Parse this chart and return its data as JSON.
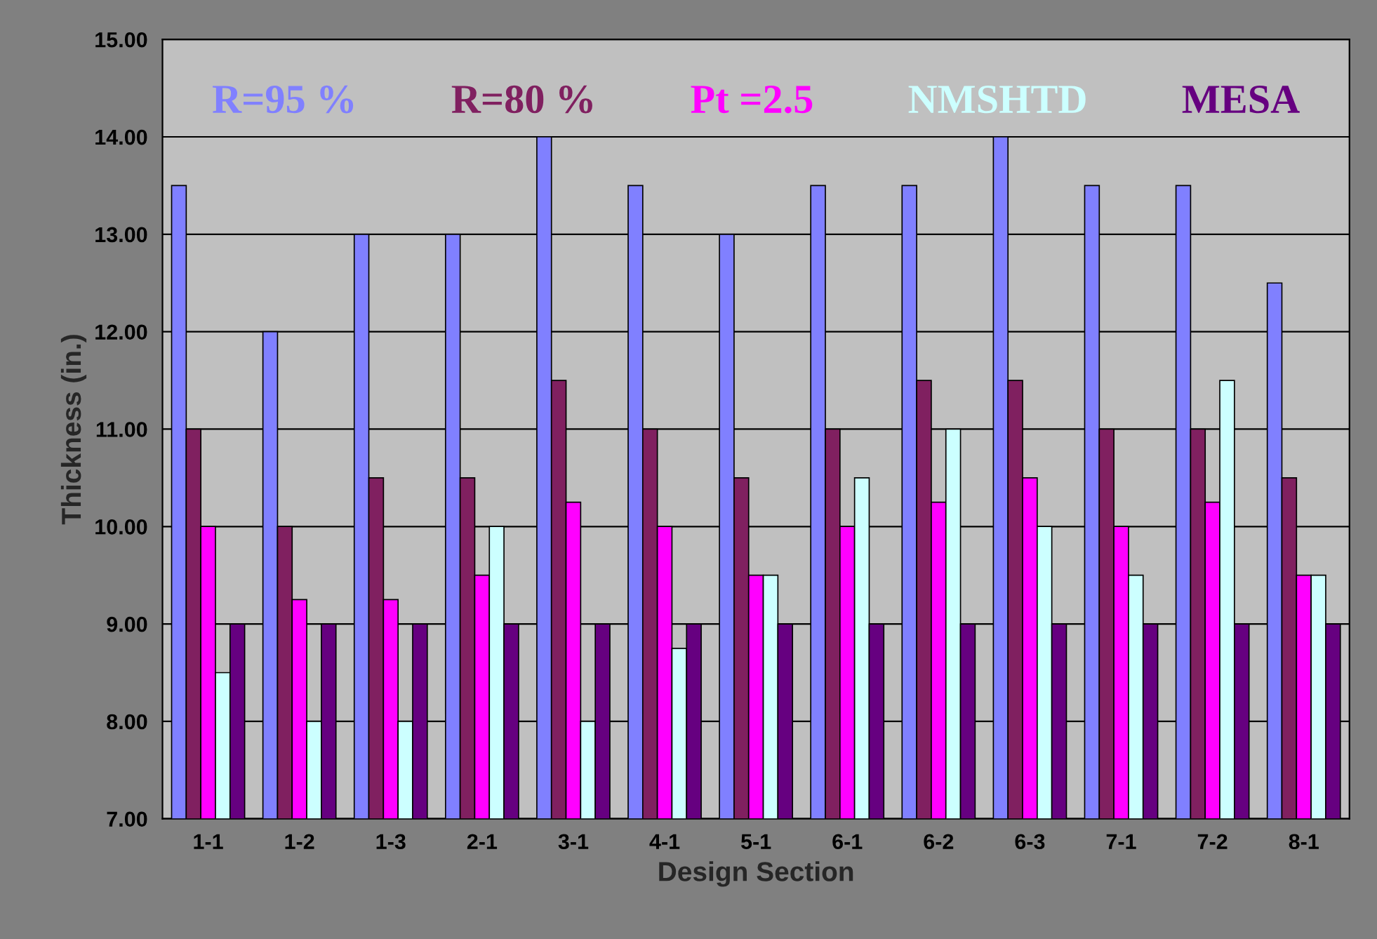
{
  "chart_data": {
    "type": "bar",
    "xlabel": "Design Section",
    "ylabel": "Thickness (in.)",
    "categories": [
      "1-1",
      "1-2",
      "1-3",
      "2-1",
      "3-1",
      "4-1",
      "5-1",
      "6-1",
      "6-2",
      "6-3",
      "7-1",
      "7-2",
      "8-1"
    ],
    "series": [
      {
        "name": "R=95 %",
        "color": "#8080ff",
        "values": [
          13.5,
          12,
          13,
          13,
          14,
          13.5,
          13,
          13.5,
          13.5,
          14,
          13.5,
          13.5,
          12.5
        ]
      },
      {
        "name": "R=80 %",
        "color": "#802060",
        "values": [
          11,
          10,
          10.5,
          10.5,
          11.5,
          11,
          10.5,
          11,
          11.5,
          11.5,
          11,
          11,
          10.5
        ]
      },
      {
        "name": "Pt =2.5",
        "color": "#ff00ff",
        "values": [
          10,
          9.25,
          9.25,
          9.5,
          10.25,
          10,
          9.5,
          10,
          10.25,
          10.5,
          10,
          10.25,
          9.5
        ]
      },
      {
        "name": "NMSHTD",
        "color": "#ccffff",
        "values": [
          8.5,
          8,
          8,
          10,
          8,
          8.75,
          9.5,
          10.5,
          11,
          10,
          9.5,
          11.5,
          9.5
        ]
      },
      {
        "name": "MESA",
        "color": "#660080",
        "values": [
          9,
          9,
          9,
          9,
          9,
          9,
          9,
          9,
          9,
          9,
          9,
          9,
          9
        ]
      }
    ],
    "ylim": [
      7,
      15
    ],
    "yticks": [
      {
        "value": 7,
        "label": "7.00"
      },
      {
        "value": 8,
        "label": "8.00"
      },
      {
        "value": 9,
        "label": "9.00"
      },
      {
        "value": 10,
        "label": "10.00"
      },
      {
        "value": 11,
        "label": "11.00"
      },
      {
        "value": 12,
        "label": "12.00"
      },
      {
        "value": 13,
        "label": "13.00"
      },
      {
        "value": 14,
        "label": "14.00"
      },
      {
        "value": 15,
        "label": "15.00"
      }
    ],
    "grid": "y",
    "legend": "top"
  }
}
